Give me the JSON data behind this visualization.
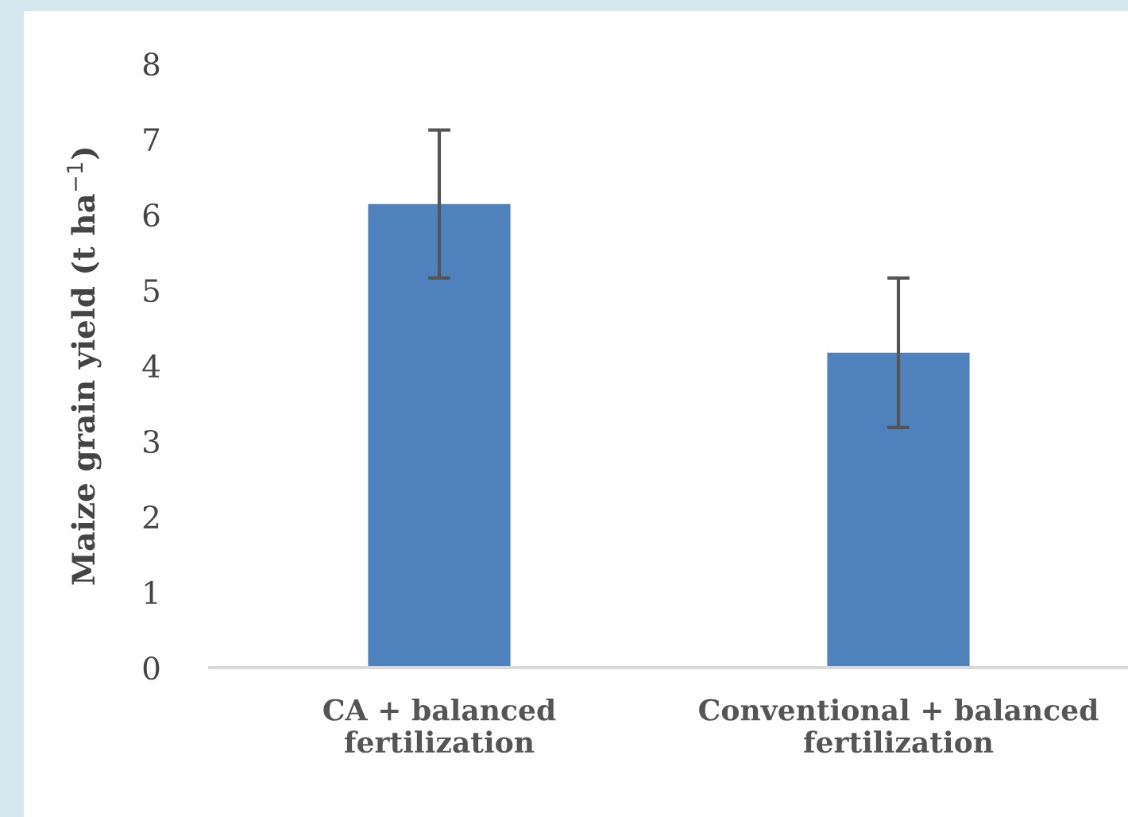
{
  "chart_data": {
    "type": "bar",
    "ylabel": "Maize grain yield (t ha$^{−1}$)",
    "categories": [
      "CA + balanced\nfertilization",
      "Conventional + balanced\nfertilization"
    ],
    "values": [
      6.14,
      4.17
    ],
    "errors": [
      0.98,
      0.99
    ],
    "color": "#4f81bd",
    "ylim": [
      0,
      8
    ],
    "yticks": [
      0,
      1,
      2,
      3,
      4,
      5,
      6,
      7,
      8
    ],
    "grid": false,
    "legend": false
  }
}
